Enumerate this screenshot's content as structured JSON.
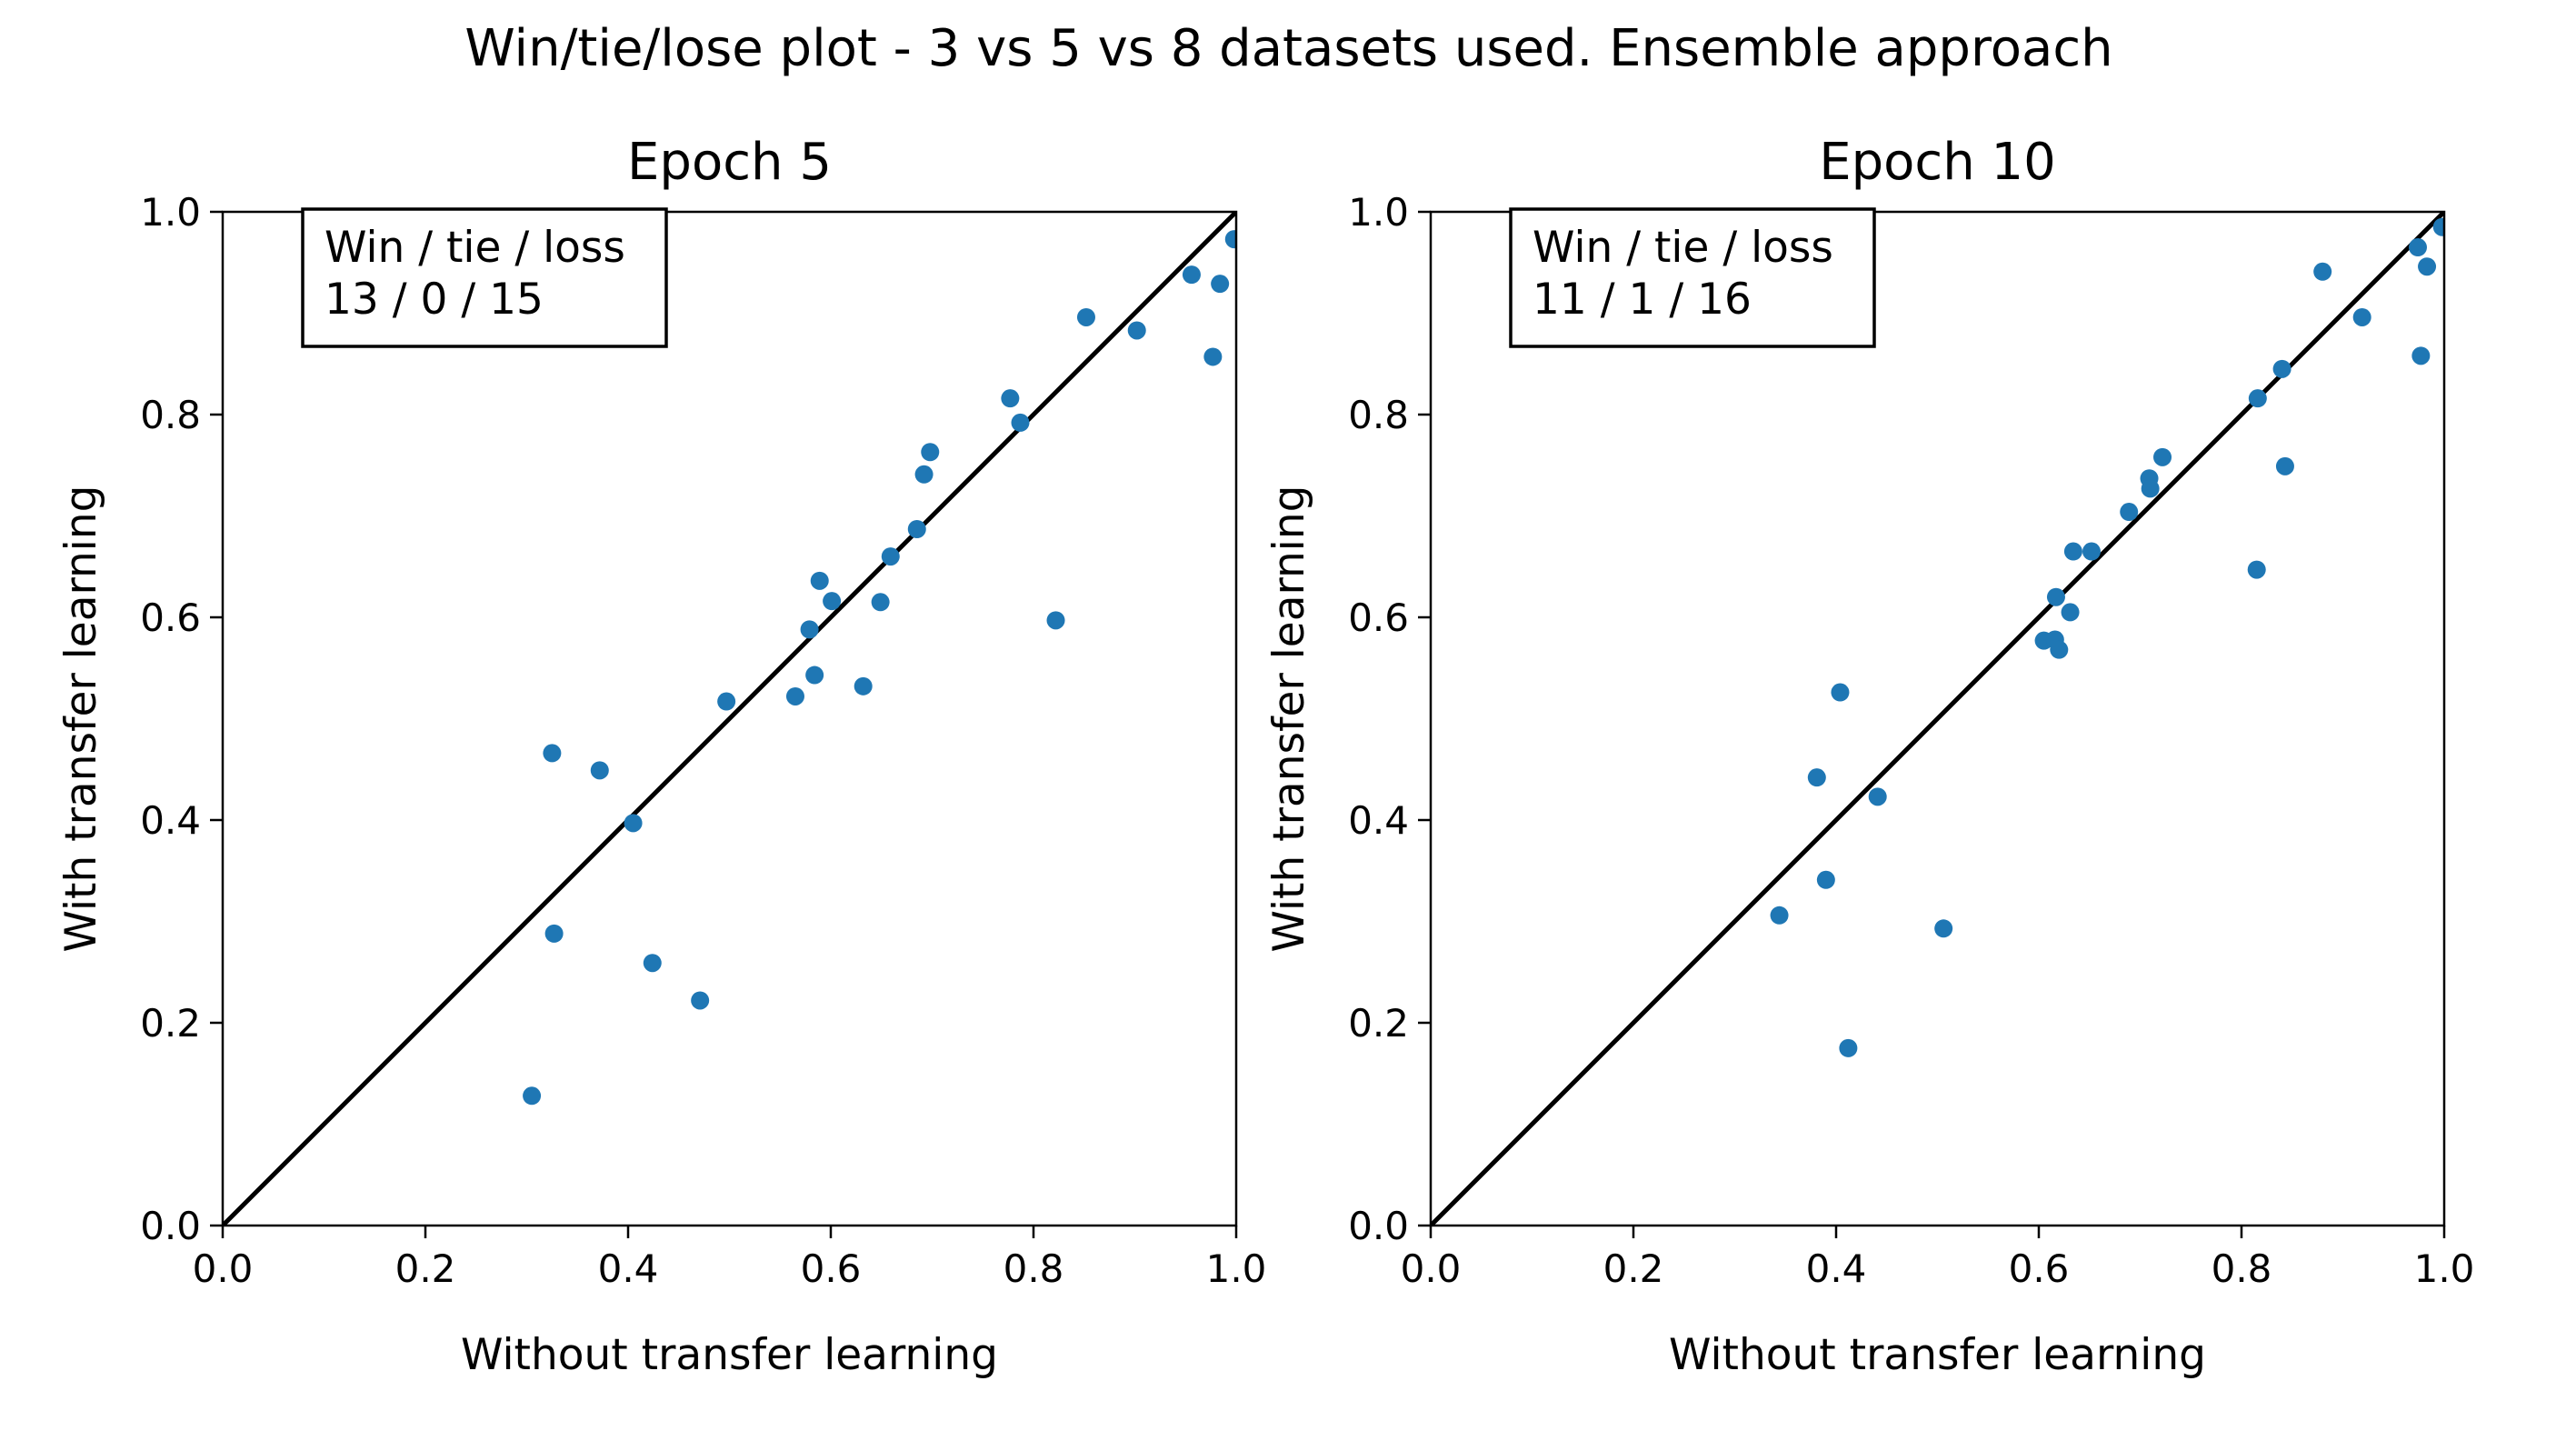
{
  "figure": {
    "title": "Win/tie/lose plot - 3 vs 5 vs 8 datasets used. Ensemble  approach"
  },
  "chart_data": [
    {
      "type": "scatter",
      "title": "Epoch 5",
      "xlabel": "Without transfer learning",
      "ylabel": "With transfer learning",
      "xlim": [
        0.0,
        1.0
      ],
      "ylim": [
        0.0,
        1.0
      ],
      "xticks": [
        "0.0",
        "0.2",
        "0.4",
        "0.6",
        "0.8",
        "1.0"
      ],
      "yticks": [
        "0.0",
        "0.2",
        "0.4",
        "0.6",
        "0.8",
        "1.0"
      ],
      "grid": false,
      "reference_line": "y = x",
      "point_color": "#1f77b4",
      "line_color": "#000000",
      "annotation": {
        "line1": "Win / tie / loss",
        "line2": "13 / 0 / 15"
      },
      "points": [
        {
          "x": 0.305,
          "y": 0.128
        },
        {
          "x": 0.325,
          "y": 0.466
        },
        {
          "x": 0.327,
          "y": 0.288
        },
        {
          "x": 0.372,
          "y": 0.449
        },
        {
          "x": 0.405,
          "y": 0.397
        },
        {
          "x": 0.424,
          "y": 0.259
        },
        {
          "x": 0.471,
          "y": 0.222
        },
        {
          "x": 0.497,
          "y": 0.517
        },
        {
          "x": 0.565,
          "y": 0.522
        },
        {
          "x": 0.579,
          "y": 0.588
        },
        {
          "x": 0.584,
          "y": 0.543
        },
        {
          "x": 0.589,
          "y": 0.636
        },
        {
          "x": 0.601,
          "y": 0.616
        },
        {
          "x": 0.632,
          "y": 0.532
        },
        {
          "x": 0.649,
          "y": 0.615
        },
        {
          "x": 0.659,
          "y": 0.66
        },
        {
          "x": 0.685,
          "y": 0.687
        },
        {
          "x": 0.692,
          "y": 0.741
        },
        {
          "x": 0.698,
          "y": 0.763
        },
        {
          "x": 0.777,
          "y": 0.816
        },
        {
          "x": 0.787,
          "y": 0.792
        },
        {
          "x": 0.822,
          "y": 0.597
        },
        {
          "x": 0.852,
          "y": 0.896
        },
        {
          "x": 0.902,
          "y": 0.883
        },
        {
          "x": 0.956,
          "y": 0.938
        },
        {
          "x": 0.977,
          "y": 0.857
        },
        {
          "x": 0.984,
          "y": 0.929
        },
        {
          "x": 0.998,
          "y": 0.973
        }
      ]
    },
    {
      "type": "scatter",
      "title": "Epoch 10",
      "xlabel": "Without transfer learning",
      "ylabel": "With transfer learning",
      "xlim": [
        0.0,
        1.0
      ],
      "ylim": [
        0.0,
        1.0
      ],
      "xticks": [
        "0.0",
        "0.2",
        "0.4",
        "0.6",
        "0.8",
        "1.0"
      ],
      "yticks": [
        "0.0",
        "0.2",
        "0.4",
        "0.6",
        "0.8",
        "1.0"
      ],
      "grid": false,
      "reference_line": "y = x",
      "point_color": "#1f77b4",
      "line_color": "#000000",
      "annotation": {
        "line1": "Win / tie / loss",
        "line2": "11 / 1 / 16"
      },
      "points": [
        {
          "x": 0.344,
          "y": 0.306
        },
        {
          "x": 0.381,
          "y": 0.442
        },
        {
          "x": 0.39,
          "y": 0.341
        },
        {
          "x": 0.404,
          "y": 0.526
        },
        {
          "x": 0.412,
          "y": 0.175
        },
        {
          "x": 0.441,
          "y": 0.423
        },
        {
          "x": 0.506,
          "y": 0.293
        },
        {
          "x": 0.605,
          "y": 0.577
        },
        {
          "x": 0.616,
          "y": 0.578
        },
        {
          "x": 0.617,
          "y": 0.62
        },
        {
          "x": 0.62,
          "y": 0.568
        },
        {
          "x": 0.631,
          "y": 0.605
        },
        {
          "x": 0.634,
          "y": 0.665
        },
        {
          "x": 0.652,
          "y": 0.665
        },
        {
          "x": 0.689,
          "y": 0.704
        },
        {
          "x": 0.709,
          "y": 0.737
        },
        {
          "x": 0.71,
          "y": 0.727
        },
        {
          "x": 0.722,
          "y": 0.758
        },
        {
          "x": 0.815,
          "y": 0.647
        },
        {
          "x": 0.816,
          "y": 0.816
        },
        {
          "x": 0.84,
          "y": 0.845
        },
        {
          "x": 0.843,
          "y": 0.749
        },
        {
          "x": 0.88,
          "y": 0.941
        },
        {
          "x": 0.919,
          "y": 0.896
        },
        {
          "x": 0.974,
          "y": 0.965
        },
        {
          "x": 0.977,
          "y": 0.858
        },
        {
          "x": 0.983,
          "y": 0.946
        },
        {
          "x": 0.998,
          "y": 0.985
        }
      ]
    }
  ]
}
